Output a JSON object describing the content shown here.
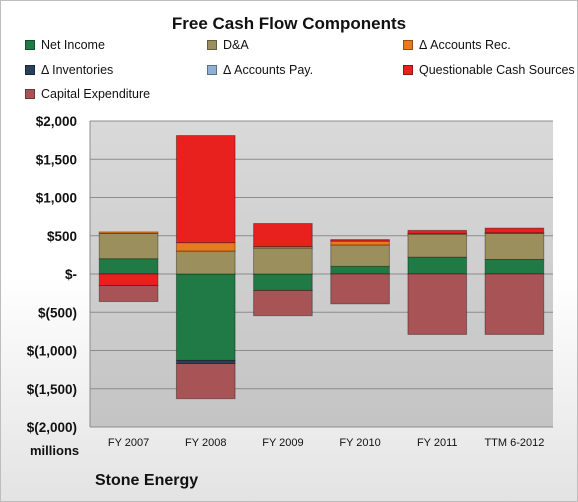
{
  "chart_data": {
    "type": "bar",
    "stacked": true,
    "title": "Free Cash Flow Components",
    "categories": [
      "FY 2007",
      "FY 2008",
      "FY 2009",
      "FY 2010",
      "FY 2011",
      "TTM 6-2012"
    ],
    "y_tick_labels": [
      "$2,000",
      "$1,500",
      "$1,000",
      "$500",
      "$-",
      "$(500)",
      "$(1,000)",
      "$(1,500)",
      "$(2,000)"
    ],
    "y_ticks": [
      2000,
      1500,
      1000,
      500,
      0,
      -500,
      -1000,
      -1500,
      -2000
    ],
    "ylim": [
      -2000,
      2000
    ],
    "units_label": "millions",
    "grid": true,
    "legend_position": "top",
    "series": [
      {
        "name": "Net Income",
        "color": "#1f7a45",
        "values": [
          200,
          -1130,
          -215,
          100,
          220,
          190
        ]
      },
      {
        "name": "D&A",
        "color": "#9c8f5e",
        "values": [
          330,
          300,
          340,
          280,
          300,
          340
        ]
      },
      {
        "name": "Δ Accounts Rec.",
        "color": "#e8791e",
        "values": [
          20,
          110,
          20,
          50,
          10,
          10
        ]
      },
      {
        "name": "Δ Inventories",
        "color": "#2a3f5a",
        "values": [
          0,
          -40,
          0,
          0,
          0,
          0
        ]
      },
      {
        "name": "Δ Accounts Pay.",
        "color": "#8fb0d3",
        "values": [
          0,
          0,
          0,
          0,
          0,
          0
        ]
      },
      {
        "name": "Questionable Cash Sources",
        "color": "#e8201e",
        "values": [
          -150,
          1400,
          300,
          20,
          40,
          60
        ]
      },
      {
        "name": "Capital Expenditure",
        "color": "#a85355",
        "values": [
          -210,
          -460,
          -330,
          -390,
          -790,
          -790
        ]
      }
    ]
  },
  "footer": {
    "company": "Stone Energy"
  }
}
